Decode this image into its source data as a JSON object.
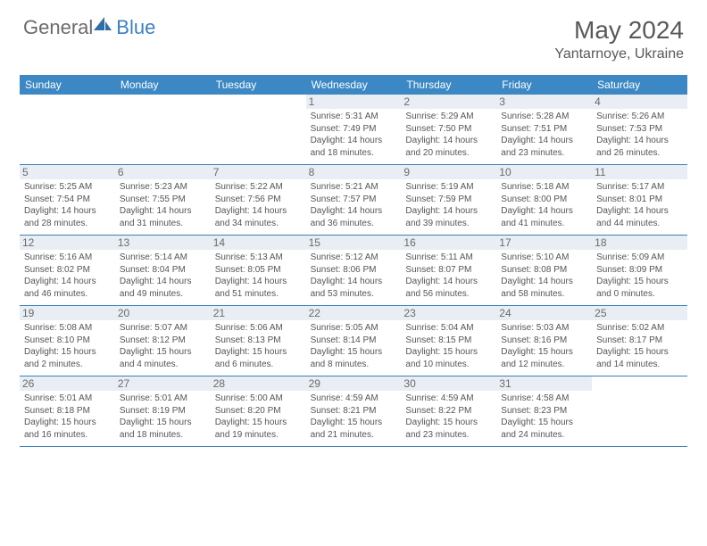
{
  "brand": {
    "part1": "General",
    "part2": "Blue"
  },
  "title": "May 2024",
  "location": "Yantarnoye, Ukraine",
  "day_labels": [
    "Sunday",
    "Monday",
    "Tuesday",
    "Wednesday",
    "Thursday",
    "Friday",
    "Saturday"
  ],
  "colors": {
    "header_bg": "#3b88c4",
    "divider": "#3b7fb8",
    "daynum_bg": "#e8eef3",
    "text_dark": "#595959",
    "text_body": "#555555",
    "logo_gray": "#6b6b6b",
    "logo_blue": "#3b7fc4"
  },
  "weeks": [
    [
      {
        "n": "",
        "sr": "",
        "ss": "",
        "dl1": "",
        "dl2": ""
      },
      {
        "n": "",
        "sr": "",
        "ss": "",
        "dl1": "",
        "dl2": ""
      },
      {
        "n": "",
        "sr": "",
        "ss": "",
        "dl1": "",
        "dl2": ""
      },
      {
        "n": "1",
        "sr": "Sunrise: 5:31 AM",
        "ss": "Sunset: 7:49 PM",
        "dl1": "Daylight: 14 hours",
        "dl2": "and 18 minutes."
      },
      {
        "n": "2",
        "sr": "Sunrise: 5:29 AM",
        "ss": "Sunset: 7:50 PM",
        "dl1": "Daylight: 14 hours",
        "dl2": "and 20 minutes."
      },
      {
        "n": "3",
        "sr": "Sunrise: 5:28 AM",
        "ss": "Sunset: 7:51 PM",
        "dl1": "Daylight: 14 hours",
        "dl2": "and 23 minutes."
      },
      {
        "n": "4",
        "sr": "Sunrise: 5:26 AM",
        "ss": "Sunset: 7:53 PM",
        "dl1": "Daylight: 14 hours",
        "dl2": "and 26 minutes."
      }
    ],
    [
      {
        "n": "5",
        "sr": "Sunrise: 5:25 AM",
        "ss": "Sunset: 7:54 PM",
        "dl1": "Daylight: 14 hours",
        "dl2": "and 28 minutes."
      },
      {
        "n": "6",
        "sr": "Sunrise: 5:23 AM",
        "ss": "Sunset: 7:55 PM",
        "dl1": "Daylight: 14 hours",
        "dl2": "and 31 minutes."
      },
      {
        "n": "7",
        "sr": "Sunrise: 5:22 AM",
        "ss": "Sunset: 7:56 PM",
        "dl1": "Daylight: 14 hours",
        "dl2": "and 34 minutes."
      },
      {
        "n": "8",
        "sr": "Sunrise: 5:21 AM",
        "ss": "Sunset: 7:57 PM",
        "dl1": "Daylight: 14 hours",
        "dl2": "and 36 minutes."
      },
      {
        "n": "9",
        "sr": "Sunrise: 5:19 AM",
        "ss": "Sunset: 7:59 PM",
        "dl1": "Daylight: 14 hours",
        "dl2": "and 39 minutes."
      },
      {
        "n": "10",
        "sr": "Sunrise: 5:18 AM",
        "ss": "Sunset: 8:00 PM",
        "dl1": "Daylight: 14 hours",
        "dl2": "and 41 minutes."
      },
      {
        "n": "11",
        "sr": "Sunrise: 5:17 AM",
        "ss": "Sunset: 8:01 PM",
        "dl1": "Daylight: 14 hours",
        "dl2": "and 44 minutes."
      }
    ],
    [
      {
        "n": "12",
        "sr": "Sunrise: 5:16 AM",
        "ss": "Sunset: 8:02 PM",
        "dl1": "Daylight: 14 hours",
        "dl2": "and 46 minutes."
      },
      {
        "n": "13",
        "sr": "Sunrise: 5:14 AM",
        "ss": "Sunset: 8:04 PM",
        "dl1": "Daylight: 14 hours",
        "dl2": "and 49 minutes."
      },
      {
        "n": "14",
        "sr": "Sunrise: 5:13 AM",
        "ss": "Sunset: 8:05 PM",
        "dl1": "Daylight: 14 hours",
        "dl2": "and 51 minutes."
      },
      {
        "n": "15",
        "sr": "Sunrise: 5:12 AM",
        "ss": "Sunset: 8:06 PM",
        "dl1": "Daylight: 14 hours",
        "dl2": "and 53 minutes."
      },
      {
        "n": "16",
        "sr": "Sunrise: 5:11 AM",
        "ss": "Sunset: 8:07 PM",
        "dl1": "Daylight: 14 hours",
        "dl2": "and 56 minutes."
      },
      {
        "n": "17",
        "sr": "Sunrise: 5:10 AM",
        "ss": "Sunset: 8:08 PM",
        "dl1": "Daylight: 14 hours",
        "dl2": "and 58 minutes."
      },
      {
        "n": "18",
        "sr": "Sunrise: 5:09 AM",
        "ss": "Sunset: 8:09 PM",
        "dl1": "Daylight: 15 hours",
        "dl2": "and 0 minutes."
      }
    ],
    [
      {
        "n": "19",
        "sr": "Sunrise: 5:08 AM",
        "ss": "Sunset: 8:10 PM",
        "dl1": "Daylight: 15 hours",
        "dl2": "and 2 minutes."
      },
      {
        "n": "20",
        "sr": "Sunrise: 5:07 AM",
        "ss": "Sunset: 8:12 PM",
        "dl1": "Daylight: 15 hours",
        "dl2": "and 4 minutes."
      },
      {
        "n": "21",
        "sr": "Sunrise: 5:06 AM",
        "ss": "Sunset: 8:13 PM",
        "dl1": "Daylight: 15 hours",
        "dl2": "and 6 minutes."
      },
      {
        "n": "22",
        "sr": "Sunrise: 5:05 AM",
        "ss": "Sunset: 8:14 PM",
        "dl1": "Daylight: 15 hours",
        "dl2": "and 8 minutes."
      },
      {
        "n": "23",
        "sr": "Sunrise: 5:04 AM",
        "ss": "Sunset: 8:15 PM",
        "dl1": "Daylight: 15 hours",
        "dl2": "and 10 minutes."
      },
      {
        "n": "24",
        "sr": "Sunrise: 5:03 AM",
        "ss": "Sunset: 8:16 PM",
        "dl1": "Daylight: 15 hours",
        "dl2": "and 12 minutes."
      },
      {
        "n": "25",
        "sr": "Sunrise: 5:02 AM",
        "ss": "Sunset: 8:17 PM",
        "dl1": "Daylight: 15 hours",
        "dl2": "and 14 minutes."
      }
    ],
    [
      {
        "n": "26",
        "sr": "Sunrise: 5:01 AM",
        "ss": "Sunset: 8:18 PM",
        "dl1": "Daylight: 15 hours",
        "dl2": "and 16 minutes."
      },
      {
        "n": "27",
        "sr": "Sunrise: 5:01 AM",
        "ss": "Sunset: 8:19 PM",
        "dl1": "Daylight: 15 hours",
        "dl2": "and 18 minutes."
      },
      {
        "n": "28",
        "sr": "Sunrise: 5:00 AM",
        "ss": "Sunset: 8:20 PM",
        "dl1": "Daylight: 15 hours",
        "dl2": "and 19 minutes."
      },
      {
        "n": "29",
        "sr": "Sunrise: 4:59 AM",
        "ss": "Sunset: 8:21 PM",
        "dl1": "Daylight: 15 hours",
        "dl2": "and 21 minutes."
      },
      {
        "n": "30",
        "sr": "Sunrise: 4:59 AM",
        "ss": "Sunset: 8:22 PM",
        "dl1": "Daylight: 15 hours",
        "dl2": "and 23 minutes."
      },
      {
        "n": "31",
        "sr": "Sunrise: 4:58 AM",
        "ss": "Sunset: 8:23 PM",
        "dl1": "Daylight: 15 hours",
        "dl2": "and 24 minutes."
      },
      {
        "n": "",
        "sr": "",
        "ss": "",
        "dl1": "",
        "dl2": ""
      }
    ]
  ]
}
